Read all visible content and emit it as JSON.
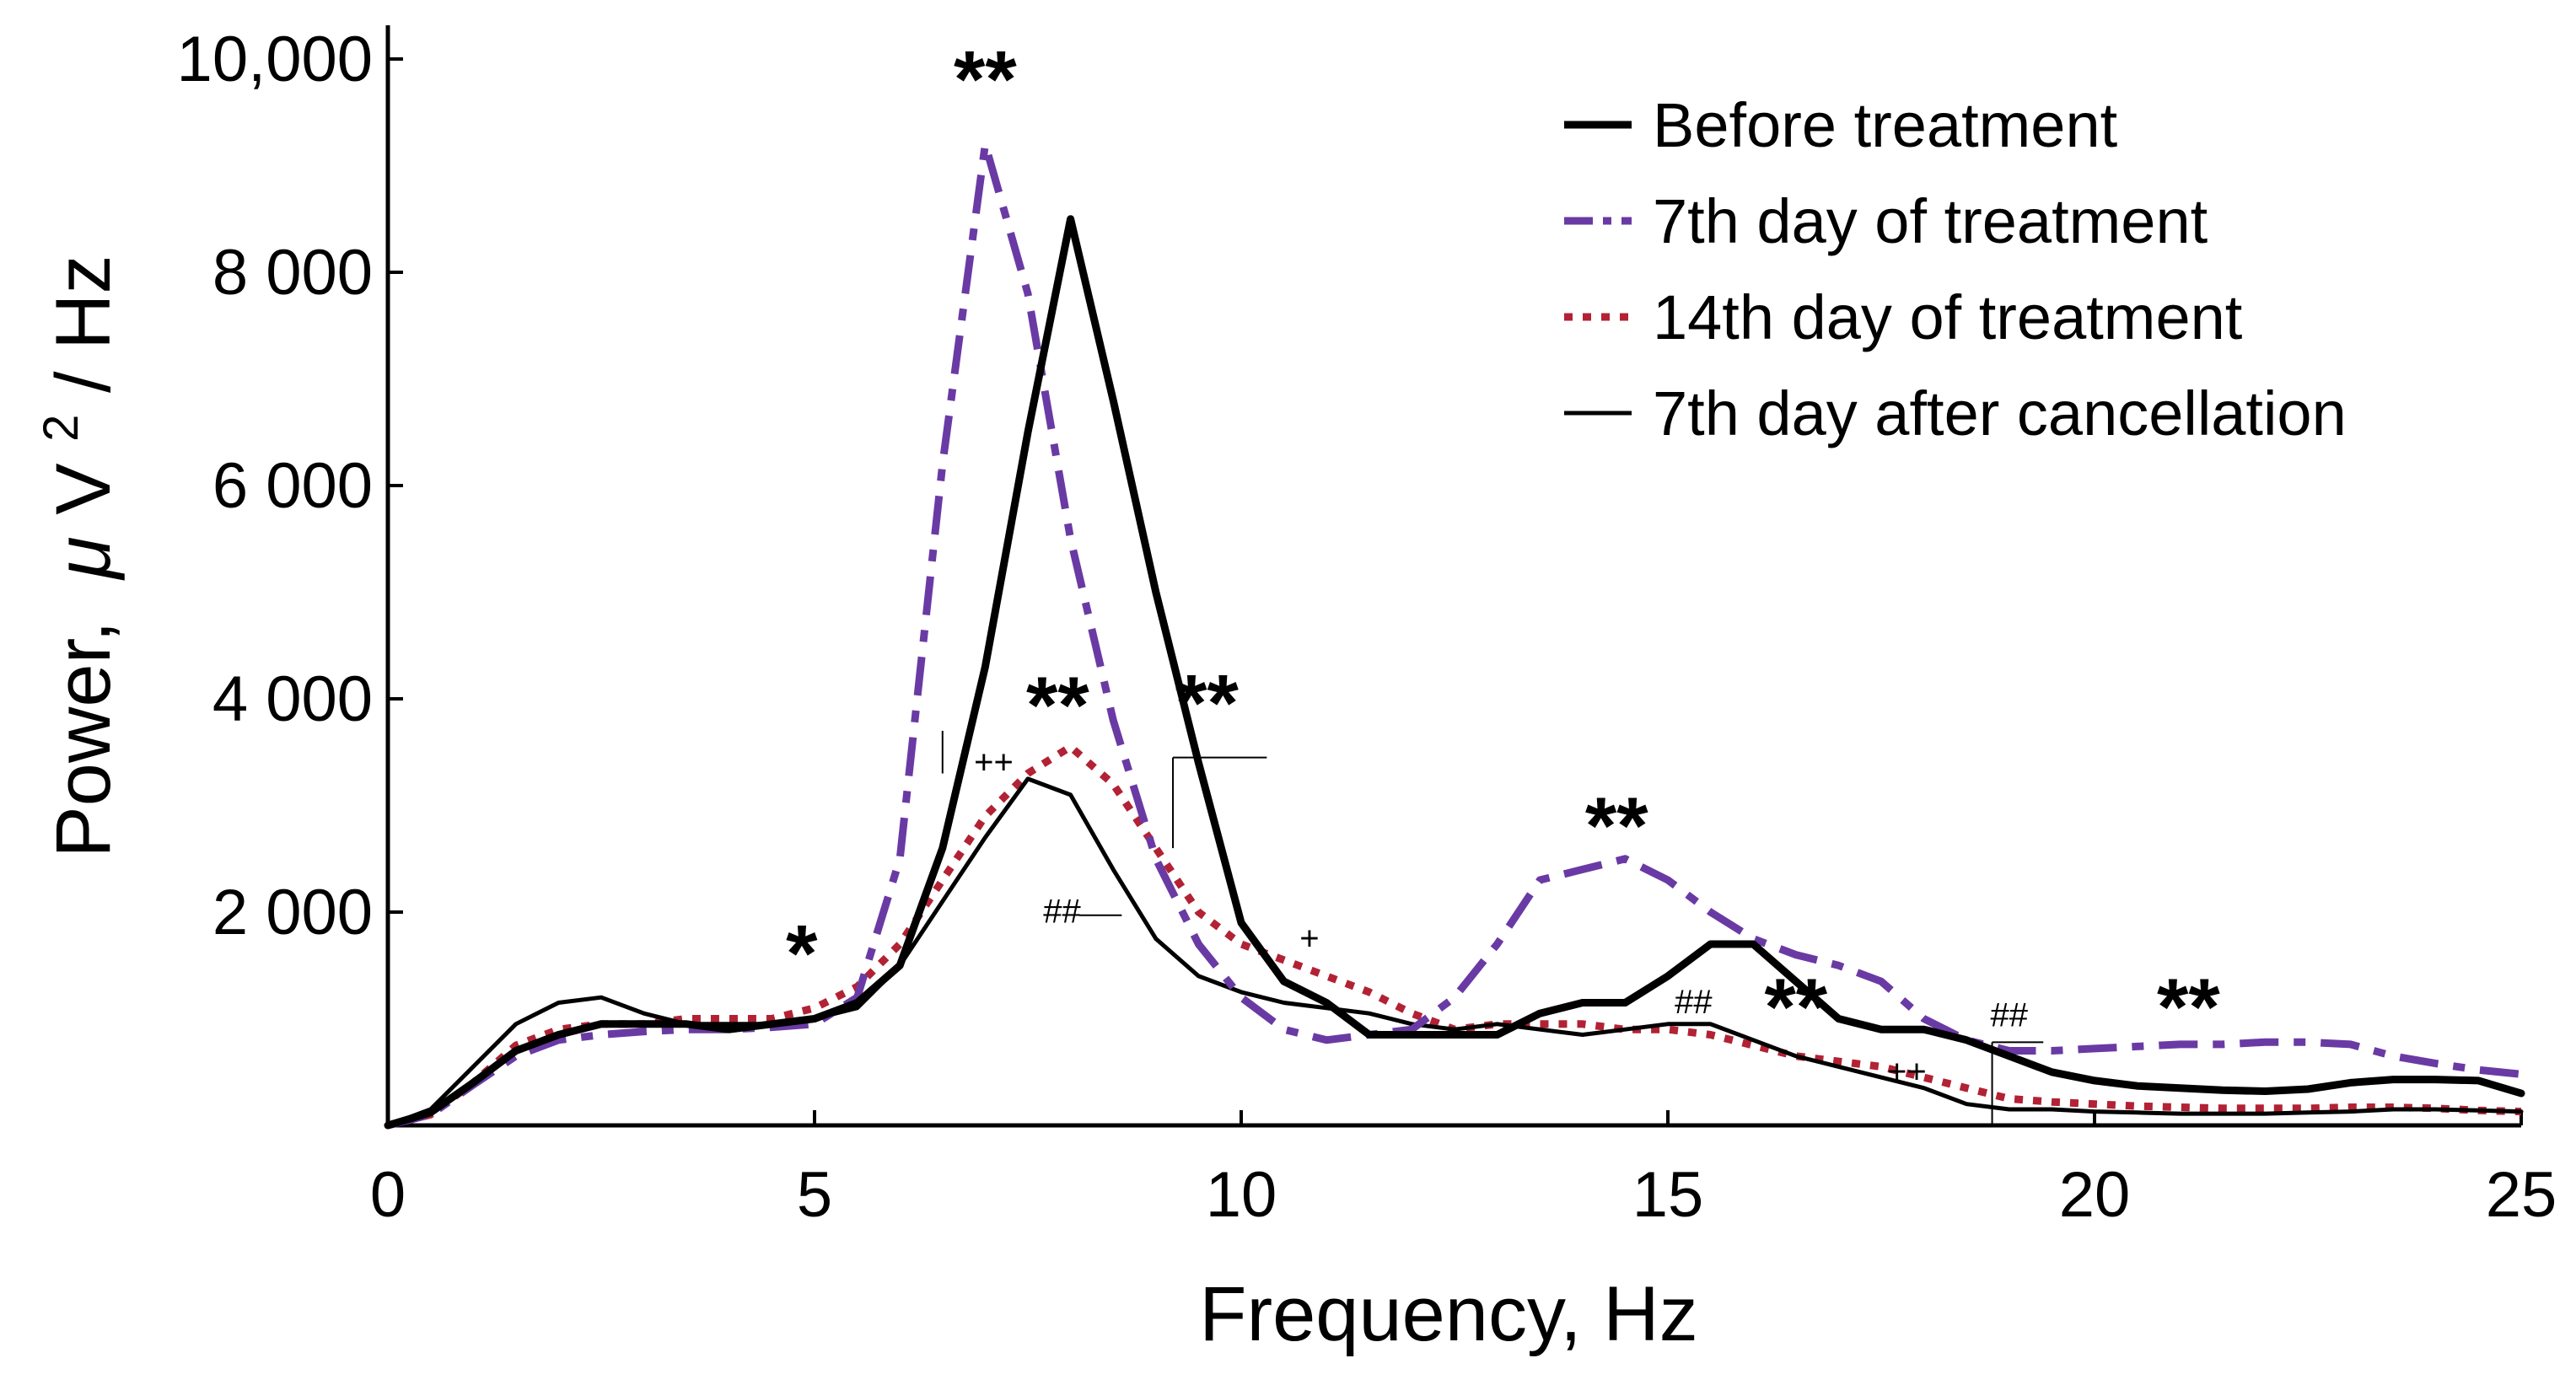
{
  "chart_data": {
    "type": "line",
    "title": "",
    "xlabel": "Frequency, Hz",
    "ylabel_main": "Power,",
    "ylabel_mu": "μ",
    "ylabel_v": "V",
    "ylabel_sup": "2",
    "ylabel_tail": " / Hz",
    "xlim": [
      0,
      25
    ],
    "ylim": [
      0,
      10000
    ],
    "x_ticks": [
      {
        "value": 0,
        "label": "0"
      },
      {
        "value": 5,
        "label": "5"
      },
      {
        "value": 10,
        "label": "10"
      },
      {
        "value": 15,
        "label": "15"
      },
      {
        "value": 20,
        "label": "20"
      },
      {
        "value": 25,
        "label": "25"
      }
    ],
    "y_ticks": [
      {
        "value": 2000,
        "label": "2 000"
      },
      {
        "value": 4000,
        "label": "4 000"
      },
      {
        "value": 6000,
        "label": "6 000"
      },
      {
        "value": 8000,
        "label": "8 000"
      },
      {
        "value": 10000,
        "label": "10,000"
      }
    ],
    "grid": false,
    "legend_position": "top-right",
    "series": [
      {
        "name": "Before treatment",
        "color": "#000000",
        "style": "solid-thick",
        "x": [
          0,
          0.5,
          1,
          1.5,
          2,
          2.5,
          3,
          3.5,
          4,
          4.5,
          5,
          5.5,
          6,
          6.5,
          7,
          7.5,
          8,
          8.5,
          9,
          9.5,
          10,
          10.5,
          11,
          11.5,
          12,
          12.5,
          13,
          13.5,
          14,
          14.5,
          15,
          15.5,
          16,
          16.5,
          17,
          17.5,
          18,
          18.5,
          19,
          19.5,
          20,
          20.5,
          21,
          21.5,
          22,
          22.5,
          23,
          23.5,
          24,
          24.5,
          25
        ],
        "y": [
          0,
          120,
          400,
          700,
          850,
          950,
          950,
          950,
          900,
          950,
          1000,
          1150,
          1500,
          2600,
          4300,
          6500,
          8500,
          6800,
          5000,
          3400,
          1900,
          1350,
          1150,
          850,
          850,
          850,
          850,
          1050,
          1150,
          1150,
          1400,
          1700,
          1700,
          1350,
          1000,
          900,
          900,
          800,
          650,
          500,
          420,
          370,
          350,
          330,
          320,
          340,
          400,
          430,
          430,
          420,
          300
        ]
      },
      {
        "name": "7th day of treatment",
        "color": "#6a3aa4",
        "style": "dashdot",
        "x": [
          0,
          0.5,
          1,
          1.5,
          2,
          2.5,
          3,
          3.5,
          4,
          4.5,
          5,
          5.5,
          6,
          6.5,
          7,
          7.5,
          8,
          8.5,
          9,
          9.5,
          10,
          10.5,
          11,
          11.5,
          12,
          12.5,
          13,
          13.5,
          14,
          14.5,
          15,
          15.5,
          16,
          16.5,
          17,
          17.5,
          18,
          18.5,
          19,
          19.5,
          20,
          20.5,
          21,
          21.5,
          22,
          22.5,
          23,
          23.5,
          24,
          24.5,
          25
        ],
        "y": [
          0,
          100,
          380,
          650,
          800,
          850,
          880,
          900,
          900,
          920,
          950,
          1200,
          2500,
          6200,
          9200,
          7800,
          5500,
          3800,
          2500,
          1700,
          1200,
          900,
          800,
          850,
          900,
          1200,
          1700,
          2300,
          2400,
          2500,
          2300,
          2000,
          1750,
          1600,
          1500,
          1350,
          1000,
          800,
          700,
          700,
          720,
          740,
          760,
          760,
          780,
          780,
          760,
          650,
          580,
          520,
          480
        ]
      },
      {
        "name": "14th day of treatment",
        "color": "#b22234",
        "style": "dotted",
        "x": [
          0,
          0.5,
          1,
          1.5,
          2,
          2.5,
          3,
          3.5,
          4,
          4.5,
          5,
          5.5,
          6,
          6.5,
          7,
          7.5,
          8,
          8.5,
          9,
          9.5,
          10,
          10.5,
          11,
          11.5,
          12,
          12.5,
          13,
          13.5,
          14,
          14.5,
          15,
          15.5,
          16,
          16.5,
          17,
          17.5,
          18,
          18.5,
          19,
          19.5,
          20,
          20.5,
          21,
          21.5,
          22,
          22.5,
          23,
          23.5,
          24,
          24.5,
          25
        ],
        "y": [
          0,
          100,
          400,
          750,
          900,
          950,
          950,
          1000,
          1000,
          1000,
          1100,
          1300,
          1700,
          2300,
          2900,
          3300,
          3550,
          3200,
          2600,
          2000,
          1700,
          1550,
          1400,
          1250,
          1050,
          900,
          950,
          950,
          950,
          900,
          900,
          850,
          750,
          650,
          600,
          550,
          450,
          350,
          250,
          220,
          200,
          180,
          170,
          160,
          160,
          160,
          170,
          170,
          160,
          140,
          130
        ]
      },
      {
        "name": "7th day after cancellation",
        "color": "#000000",
        "style": "solid-thin",
        "x": [
          0,
          0.5,
          1,
          1.5,
          2,
          2.5,
          3,
          3.5,
          4,
          4.5,
          5,
          5.5,
          6,
          6.5,
          7,
          7.5,
          8,
          8.5,
          9,
          9.5,
          10,
          10.5,
          11,
          11.5,
          12,
          12.5,
          13,
          13.5,
          14,
          14.5,
          15,
          15.5,
          16,
          16.5,
          17,
          17.5,
          18,
          18.5,
          19,
          19.5,
          20,
          20.5,
          21,
          21.5,
          22,
          22.5,
          23,
          23.5,
          24,
          24.5,
          25
        ],
        "y": [
          0,
          150,
          550,
          950,
          1150,
          1200,
          1050,
          950,
          950,
          950,
          1000,
          1100,
          1500,
          2100,
          2700,
          3250,
          3100,
          2400,
          1750,
          1400,
          1250,
          1150,
          1100,
          1050,
          950,
          900,
          950,
          900,
          850,
          900,
          950,
          950,
          800,
          650,
          550,
          450,
          350,
          200,
          150,
          150,
          130,
          120,
          110,
          110,
          110,
          120,
          130,
          150,
          150,
          140,
          130
        ]
      }
    ],
    "annotations": [
      {
        "text": "**",
        "x": 7.0,
        "y": 9550,
        "size": "big"
      },
      {
        "text": "*",
        "x": 4.85,
        "y": 1350,
        "size": "big"
      },
      {
        "text": "**",
        "x": 7.85,
        "y": 3680,
        "size": "big"
      },
      {
        "text": "**",
        "x": 9.6,
        "y": 3700,
        "size": "big"
      },
      {
        "text": "**",
        "x": 14.4,
        "y": 2550,
        "size": "big"
      },
      {
        "text": "**",
        "x": 16.5,
        "y": 850,
        "size": "big"
      },
      {
        "text": "**",
        "x": 21.1,
        "y": 850,
        "size": "big"
      },
      {
        "text": "++",
        "x": 7.1,
        "y": 3300,
        "size": "small"
      },
      {
        "text": "##",
        "x": 7.9,
        "y": 1900,
        "size": "small"
      },
      {
        "text": "+",
        "x": 10.8,
        "y": 1650,
        "size": "small"
      },
      {
        "text": "##",
        "x": 15.3,
        "y": 1050,
        "size": "small"
      },
      {
        "text": "++",
        "x": 17.8,
        "y": 400,
        "size": "small"
      },
      {
        "text": "##",
        "x": 19.0,
        "y": 930,
        "size": "small"
      }
    ]
  }
}
